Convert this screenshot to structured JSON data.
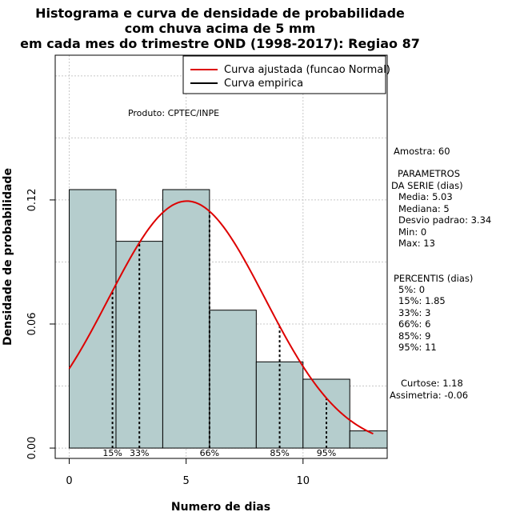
{
  "chart_data": {
    "type": "bar",
    "title_lines": [
      "Histograma e curva de densidade de probabilidade",
      "com chuva acima de 5 mm",
      "em cada mes do trimestre OND (1998-2017): Regiao 87"
    ],
    "xlabel": "Numero de dias",
    "ylabel": "Densidade de probabilidade",
    "xlim": [
      -0.6,
      13.6
    ],
    "ylim": [
      -0.005,
      0.19
    ],
    "x_ticks": [
      0,
      5,
      10
    ],
    "y_ticks": [
      0.0,
      0.06,
      0.12
    ],
    "y_tick_labels": [
      "0.00",
      "0.06",
      "0.12"
    ],
    "grid": true,
    "bins": [
      {
        "from": 0,
        "to": 2,
        "density": 0.125
      },
      {
        "from": 2,
        "to": 4,
        "density": 0.1
      },
      {
        "from": 4,
        "to": 6,
        "density": 0.125
      },
      {
        "from": 6,
        "to": 8,
        "density": 0.0667
      },
      {
        "from": 8,
        "to": 10,
        "density": 0.0417
      },
      {
        "from": 10,
        "to": 12,
        "density": 0.0333
      },
      {
        "from": 12,
        "to": 14,
        "density": 0.0083
      }
    ],
    "bar_color": "#b5cdcd",
    "normal_curve": {
      "mean": 5.03,
      "sd": 3.34,
      "x_from": 0,
      "x_to": 13,
      "color": "#dd0000"
    },
    "percentile_lines": [
      {
        "label": "15%",
        "x": 1.85
      },
      {
        "label": "33%",
        "x": 3
      },
      {
        "label": "66%",
        "x": 6
      },
      {
        "label": "85%",
        "x": 9
      },
      {
        "label": "95%",
        "x": 11
      }
    ],
    "legend": {
      "position": "top-right",
      "entries": [
        {
          "label": "Curva ajustada (funcao Normal)",
          "color": "#dd0000"
        },
        {
          "label": "Curva empirica",
          "color": "#000000"
        }
      ]
    },
    "annotation": "Produto: CPTEC/INPE"
  },
  "side_panel": {
    "amostra": "Amostra: 60",
    "params_title_1": "PARAMETROS",
    "params_title_2": "DA SERIE (dias)",
    "media": "Media: 5.03",
    "mediana": "Mediana: 5",
    "desvio": "Desvio padrao: 3.34",
    "min": "Min: 0",
    "max": "Max: 13",
    "perc_title": "PERCENTIS (dias)",
    "p5": "5%: 0",
    "p15": "15%: 1.85",
    "p33": "33%: 3",
    "p66": "66%: 6",
    "p85": "85%: 9",
    "p95": "95%: 11",
    "curtose": "Curtose: 1.18",
    "assimetria": "Assimetria: -0.06"
  }
}
